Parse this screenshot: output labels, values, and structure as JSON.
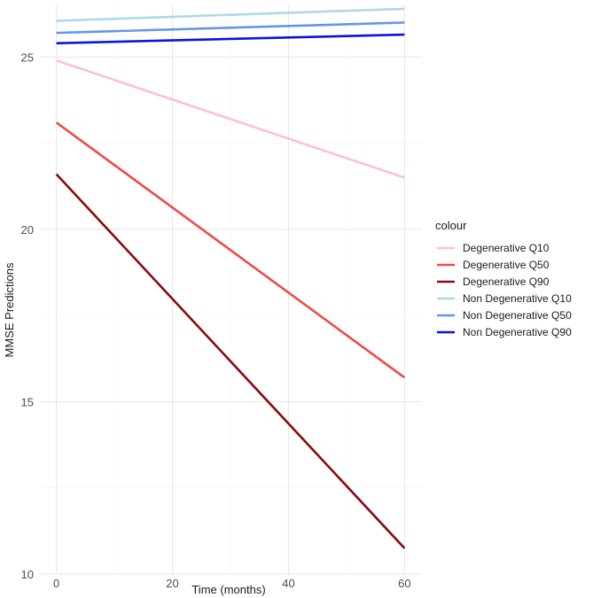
{
  "chart_data": {
    "type": "line",
    "title": "",
    "xlabel": "Time (months)",
    "ylabel": "MMSE Predictions",
    "xlim": [
      -3,
      63
    ],
    "ylim": [
      10,
      26.5
    ],
    "x_ticks": [
      0,
      20,
      40,
      60
    ],
    "y_ticks": [
      10,
      15,
      20,
      25
    ],
    "grid": true,
    "legend": {
      "title": "colour",
      "placement": "right"
    },
    "series": [
      {
        "name": "Degenerative Q10",
        "color": "#FFC0CB",
        "x": [
          0,
          60
        ],
        "y": [
          24.9,
          21.5
        ]
      },
      {
        "name": "Degenerative Q50",
        "color": "#F04848",
        "x": [
          0,
          60
        ],
        "y": [
          23.1,
          15.7
        ]
      },
      {
        "name": "Degenerative Q90",
        "color": "#8B0A0A",
        "x": [
          0,
          60
        ],
        "y": [
          21.6,
          10.75
        ]
      },
      {
        "name": "Non Degenerative Q10",
        "color": "#ADD8E6",
        "x": [
          0,
          60
        ],
        "y": [
          26.05,
          26.4
        ]
      },
      {
        "name": "Non Degenerative Q50",
        "color": "#6495ED",
        "x": [
          0,
          60
        ],
        "y": [
          25.7,
          26.0
        ]
      },
      {
        "name": "Non Degenerative Q90",
        "color": "#0A14D8",
        "x": [
          0,
          60
        ],
        "y": [
          25.4,
          25.65
        ]
      }
    ]
  }
}
